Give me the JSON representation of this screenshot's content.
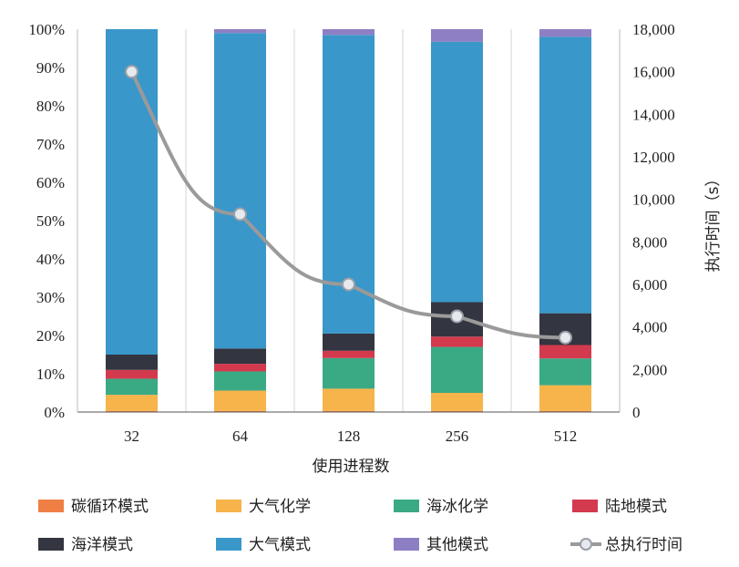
{
  "chart_data": {
    "type": "bar",
    "stacked": true,
    "categories": [
      "32",
      "64",
      "128",
      "256",
      "512"
    ],
    "xlabel": "使用进程数",
    "ylabel": "",
    "ylabel_right": "执行时间（s）",
    "ylim": [
      0,
      100
    ],
    "ylim_right": [
      0,
      18000
    ],
    "y_ticks": [
      "0%",
      "10%",
      "20%",
      "30%",
      "40%",
      "50%",
      "60%",
      "70%",
      "80%",
      "90%",
      "100%"
    ],
    "y_right_ticks": [
      "0",
      "2,000",
      "4,000",
      "6,000",
      "8,000",
      "10,000",
      "12,000",
      "14,000",
      "16,000",
      "18,000"
    ],
    "grid": "vertical",
    "legend_position": "bottom",
    "series": [
      {
        "name": "碳循环模式",
        "color": "#ef7f45",
        "values": [
          0.3,
          0.3,
          0.3,
          0.3,
          0.3
        ]
      },
      {
        "name": "大气化学",
        "color": "#f6b44a",
        "values": [
          4.2,
          5.3,
          5.8,
          4.7,
          6.7
        ]
      },
      {
        "name": "海冰化学",
        "color": "#3aaa85",
        "values": [
          4.2,
          5.0,
          8.0,
          12.0,
          7.0
        ]
      },
      {
        "name": "陆地模式",
        "color": "#d33a4e",
        "values": [
          2.3,
          2.0,
          1.9,
          2.7,
          3.5
        ]
      },
      {
        "name": "海洋模式",
        "color": "#333540",
        "values": [
          4.0,
          4.0,
          4.5,
          9.0,
          8.3
        ]
      },
      {
        "name": "大气模式",
        "color": "#3a97c9",
        "values": [
          85.0,
          82.4,
          78.0,
          68.0,
          72.2
        ]
      },
      {
        "name": "其他模式",
        "color": "#8e7fc4",
        "values": [
          0.0,
          1.0,
          1.5,
          3.3,
          2.0
        ]
      }
    ],
    "line": {
      "name": "总执行时间",
      "color": "#9a9a9a",
      "values": [
        16000,
        9300,
        6000,
        4500,
        3500
      ]
    }
  }
}
